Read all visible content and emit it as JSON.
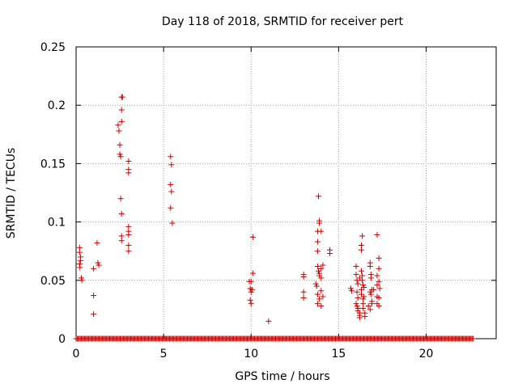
{
  "chart_data": {
    "type": "scatter",
    "title": "Day 118 of 2018, SRMTID for receiver pert",
    "xlabel": "GPS time / hours",
    "ylabel": "SRMTID / TECUs",
    "xlim": [
      0,
      24
    ],
    "ylim": [
      0,
      0.25
    ],
    "xticks": [
      0,
      5,
      10,
      15,
      20
    ],
    "xtick_labels": [
      "0",
      "5",
      "10",
      "15",
      "20"
    ],
    "yticks": [
      0,
      0.05,
      0.1,
      0.15,
      0.2,
      0.25
    ],
    "ytick_labels": [
      "0",
      "0.05",
      "0.1",
      "0.15",
      "0.2",
      "0.25"
    ],
    "grid": true,
    "marker": "+",
    "color": "#cc0000",
    "baseline": {
      "y": 0,
      "x_start": 0.0,
      "x_end": 22.7,
      "step": 0.06
    },
    "series": [
      {
        "name": "SRMTID",
        "points": [
          [
            0.2,
            0.078
          ],
          [
            0.2,
            0.074
          ],
          [
            0.25,
            0.07
          ],
          [
            0.25,
            0.067
          ],
          [
            0.2,
            0.064
          ],
          [
            0.22,
            0.061
          ],
          [
            0.3,
            0.052
          ],
          [
            0.33,
            0.05
          ],
          [
            1.0,
            0.06
          ],
          [
            1.0,
            0.037
          ],
          [
            1.0,
            0.021
          ],
          [
            1.2,
            0.082
          ],
          [
            1.25,
            0.065
          ],
          [
            1.3,
            0.063
          ],
          [
            2.4,
            0.183
          ],
          [
            2.45,
            0.178
          ],
          [
            2.5,
            0.166
          ],
          [
            2.5,
            0.158
          ],
          [
            2.55,
            0.156
          ],
          [
            2.55,
            0.12
          ],
          [
            2.6,
            0.207
          ],
          [
            2.65,
            0.207
          ],
          [
            2.6,
            0.196
          ],
          [
            2.6,
            0.186
          ],
          [
            2.6,
            0.107
          ],
          [
            2.6,
            0.088
          ],
          [
            2.6,
            0.084
          ],
          [
            3.0,
            0.152
          ],
          [
            3.0,
            0.145
          ],
          [
            3.0,
            0.142
          ],
          [
            3.0,
            0.096
          ],
          [
            3.0,
            0.092
          ],
          [
            3.0,
            0.089
          ],
          [
            3.0,
            0.08
          ],
          [
            3.0,
            0.075
          ],
          [
            5.4,
            0.156
          ],
          [
            5.45,
            0.149
          ],
          [
            5.4,
            0.132
          ],
          [
            5.45,
            0.126
          ],
          [
            5.4,
            0.112
          ],
          [
            5.5,
            0.099
          ],
          [
            9.9,
            0.049
          ],
          [
            10.0,
            0.049
          ],
          [
            9.95,
            0.043
          ],
          [
            10.05,
            0.042
          ],
          [
            10.0,
            0.04
          ],
          [
            10.1,
            0.056
          ],
          [
            10.0,
            0.03
          ],
          [
            9.95,
            0.033
          ],
          [
            10.1,
            0.087
          ],
          [
            11.0,
            0.015
          ],
          [
            13.0,
            0.055
          ],
          [
            13.0,
            0.053
          ],
          [
            13.0,
            0.04
          ],
          [
            13.0,
            0.035
          ],
          [
            13.7,
            0.047
          ],
          [
            13.75,
            0.045
          ],
          [
            13.8,
            0.062
          ],
          [
            13.85,
            0.058
          ],
          [
            13.8,
            0.083
          ],
          [
            13.9,
            0.101
          ],
          [
            13.9,
            0.099
          ],
          [
            13.85,
            0.122
          ],
          [
            13.8,
            0.075
          ],
          [
            13.9,
            0.056
          ],
          [
            13.9,
            0.054
          ],
          [
            14.0,
            0.06
          ],
          [
            14.0,
            0.052
          ],
          [
            13.9,
            0.034
          ],
          [
            13.8,
            0.03
          ],
          [
            14.0,
            0.028
          ],
          [
            14.1,
            0.036
          ],
          [
            14.1,
            0.063
          ],
          [
            14.0,
            0.092
          ],
          [
            13.8,
            0.092
          ],
          [
            14.5,
            0.076
          ],
          [
            14.5,
            0.073
          ],
          [
            14.0,
            0.041
          ],
          [
            13.8,
            0.038
          ],
          [
            15.7,
            0.043
          ],
          [
            15.75,
            0.041
          ],
          [
            16.0,
            0.062
          ],
          [
            16.0,
            0.055
          ],
          [
            16.05,
            0.05
          ],
          [
            16.1,
            0.047
          ],
          [
            16.05,
            0.04
          ],
          [
            16.1,
            0.035
          ],
          [
            16.0,
            0.03
          ],
          [
            16.05,
            0.028
          ],
          [
            16.1,
            0.026
          ],
          [
            16.1,
            0.024
          ],
          [
            16.2,
            0.022
          ],
          [
            16.2,
            0.02
          ],
          [
            16.2,
            0.018
          ],
          [
            16.3,
            0.076
          ],
          [
            16.3,
            0.08
          ],
          [
            16.35,
            0.088
          ],
          [
            16.3,
            0.058
          ],
          [
            16.35,
            0.054
          ],
          [
            16.4,
            0.046
          ],
          [
            16.3,
            0.042
          ],
          [
            16.3,
            0.038
          ],
          [
            16.4,
            0.034
          ],
          [
            16.4,
            0.03
          ],
          [
            16.4,
            0.026
          ],
          [
            16.5,
            0.022
          ],
          [
            16.5,
            0.019
          ],
          [
            16.2,
            0.052
          ],
          [
            16.35,
            0.05
          ],
          [
            16.45,
            0.044
          ],
          [
            16.45,
            0.036
          ],
          [
            16.8,
            0.065
          ],
          [
            16.8,
            0.062
          ],
          [
            16.85,
            0.055
          ],
          [
            16.85,
            0.052
          ],
          [
            16.9,
            0.042
          ],
          [
            16.8,
            0.04
          ],
          [
            16.85,
            0.038
          ],
          [
            16.9,
            0.032
          ],
          [
            16.9,
            0.03
          ],
          [
            16.8,
            0.025
          ],
          [
            17.0,
            0.042
          ],
          [
            16.7,
            0.028
          ],
          [
            17.2,
            0.089
          ],
          [
            17.3,
            0.069
          ],
          [
            17.3,
            0.06
          ],
          [
            17.2,
            0.054
          ],
          [
            17.3,
            0.049
          ],
          [
            17.2,
            0.046
          ],
          [
            17.35,
            0.043
          ],
          [
            17.2,
            0.036
          ],
          [
            17.3,
            0.035
          ],
          [
            17.2,
            0.03
          ],
          [
            17.3,
            0.028
          ]
        ]
      }
    ]
  }
}
